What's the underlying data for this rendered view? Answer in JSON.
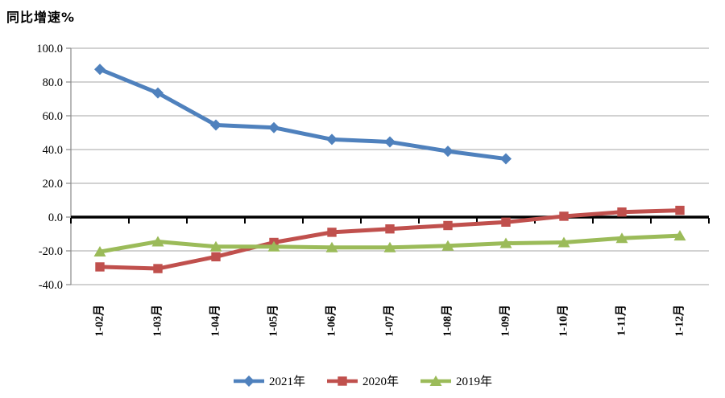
{
  "chart_data": {
    "type": "line",
    "title": "同比增速%",
    "ylabel": "同比增速%",
    "xlabel": "",
    "ylim": [
      -40,
      100
    ],
    "yticks": [
      100,
      80,
      60,
      40,
      20,
      0,
      -20,
      -40
    ],
    "grid": true,
    "zero_line": true,
    "legend_position": "bottom",
    "categories": [
      "1-02月",
      "1-03月",
      "1-04月",
      "1-05月",
      "1-06月",
      "1-07月",
      "1-08月",
      "1-09月",
      "1-10月",
      "1-11月",
      "1-12月"
    ],
    "series": [
      {
        "name": "2021年",
        "marker": "diamond",
        "color": "#4F81BD",
        "values": [
          87.5,
          73.5,
          54.5,
          53.0,
          46.0,
          44.5,
          39.0,
          34.5,
          null,
          null,
          null
        ]
      },
      {
        "name": "2020年",
        "marker": "square",
        "color": "#C0504D",
        "values": [
          -29.5,
          -30.5,
          -23.5,
          -15.0,
          -9.0,
          -7.0,
          -5.0,
          -3.0,
          0.5,
          3.0,
          4.0
        ]
      },
      {
        "name": "2019年",
        "marker": "triangle",
        "color": "#9BBB59",
        "values": [
          -20.5,
          -14.5,
          -17.5,
          -17.5,
          -18.0,
          -18.0,
          -17.0,
          -15.5,
          -15.0,
          -12.5,
          -11.0
        ]
      }
    ],
    "axis_color": "#898989",
    "gridline_color": "#A6A6A6"
  }
}
